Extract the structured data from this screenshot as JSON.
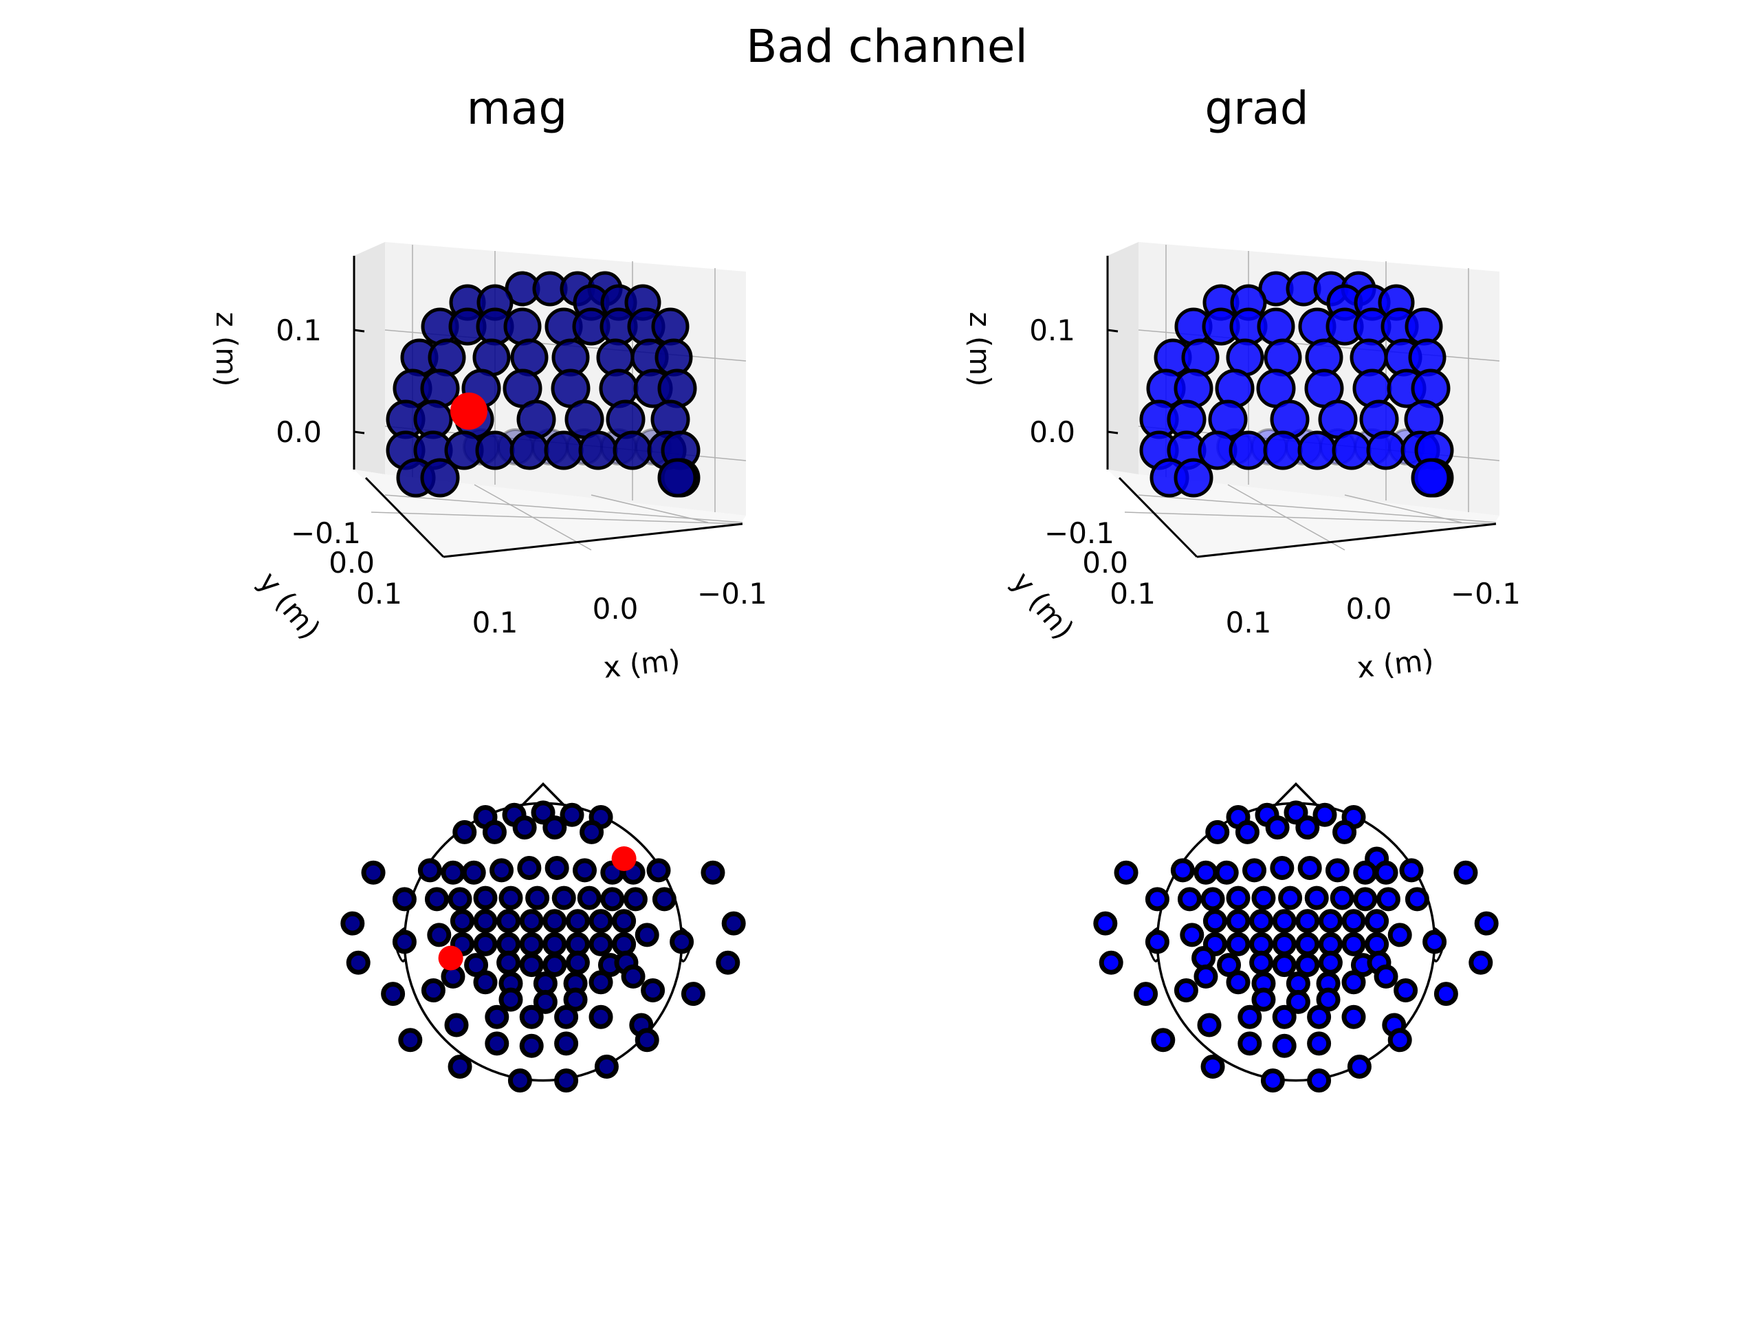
{
  "figure": {
    "suptitle": "Bad channel"
  },
  "chart_data": [
    {
      "type": "scatter",
      "panel": "3d",
      "title": "mag",
      "xlabel": "x (m)",
      "ylabel": "y (m)",
      "zlabel": "z (m)",
      "x_ticks": [
        "0.1",
        "0.0",
        "−0.1"
      ],
      "y_ticks": [
        "−0.1",
        "0.0",
        "0.1"
      ],
      "z_ticks": [
        "0.1",
        "0.0"
      ],
      "grid": true,
      "sensor_color": "#00008b",
      "bad_color": "#ff0000",
      "bad_count_visible": 1
    },
    {
      "type": "scatter",
      "panel": "3d",
      "title": "grad",
      "xlabel": "x (m)",
      "ylabel": "y (m)",
      "zlabel": "z (m)",
      "x_ticks": [
        "0.1",
        "0.0",
        "−0.1"
      ],
      "y_ticks": [
        "−0.1",
        "0.0",
        "0.1"
      ],
      "z_ticks": [
        "0.1",
        "0.0"
      ],
      "grid": true,
      "sensor_color": "#0000ff",
      "bad_color": "#ff0000",
      "bad_count_visible": 0
    },
    {
      "type": "scatter",
      "panel": "topomap",
      "sensor_type": "mag",
      "sensor_color": "#00008b",
      "bad_color": "#ff0000",
      "bad_channels": [
        [
          0.7,
          0.72
        ],
        [
          -0.8,
          -0.14
        ]
      ],
      "points": [
        [
          -0.5,
          1.08
        ],
        [
          -0.25,
          1.1
        ],
        [
          0.0,
          1.12
        ],
        [
          0.25,
          1.1
        ],
        [
          0.5,
          1.08
        ],
        [
          -0.68,
          0.95
        ],
        [
          -0.42,
          0.95
        ],
        [
          -0.16,
          0.99
        ],
        [
          0.1,
          0.99
        ],
        [
          0.42,
          0.95
        ],
        [
          -1.47,
          0.6
        ],
        [
          -0.98,
          0.62
        ],
        [
          -0.78,
          0.6
        ],
        [
          -0.6,
          0.6
        ],
        [
          -0.36,
          0.62
        ],
        [
          -0.12,
          0.64
        ],
        [
          0.12,
          0.64
        ],
        [
          0.36,
          0.62
        ],
        [
          0.6,
          0.6
        ],
        [
          0.78,
          0.6
        ],
        [
          1.0,
          0.62
        ],
        [
          1.47,
          0.6
        ],
        [
          -1.2,
          0.37
        ],
        [
          -0.92,
          0.37
        ],
        [
          -0.72,
          0.37
        ],
        [
          -0.5,
          0.38
        ],
        [
          -0.28,
          0.38
        ],
        [
          -0.05,
          0.38
        ],
        [
          0.18,
          0.38
        ],
        [
          0.4,
          0.38
        ],
        [
          0.6,
          0.37
        ],
        [
          0.8,
          0.37
        ],
        [
          1.05,
          0.37
        ],
        [
          -1.65,
          0.16
        ],
        [
          -1.2,
          0.0
        ],
        [
          -0.9,
          0.06
        ],
        [
          -0.7,
          0.18
        ],
        [
          -0.5,
          0.18
        ],
        [
          -0.3,
          0.18
        ],
        [
          -0.1,
          0.18
        ],
        [
          0.1,
          0.18
        ],
        [
          0.3,
          0.18
        ],
        [
          0.5,
          0.18
        ],
        [
          0.7,
          0.18
        ],
        [
          0.9,
          0.06
        ],
        [
          1.2,
          0.0
        ],
        [
          1.65,
          0.16
        ],
        [
          -0.7,
          -0.02
        ],
        [
          -0.5,
          -0.02
        ],
        [
          -0.3,
          -0.02
        ],
        [
          -0.1,
          -0.02
        ],
        [
          0.1,
          -0.02
        ],
        [
          0.3,
          -0.02
        ],
        [
          0.5,
          -0.02
        ],
        [
          0.7,
          -0.02
        ],
        [
          -1.6,
          -0.18
        ],
        [
          -0.58,
          -0.2
        ],
        [
          -0.3,
          -0.18
        ],
        [
          -0.1,
          -0.2
        ],
        [
          0.1,
          -0.2
        ],
        [
          0.3,
          -0.18
        ],
        [
          0.58,
          -0.2
        ],
        [
          0.72,
          -0.18
        ],
        [
          1.6,
          -0.18
        ],
        [
          -0.78,
          -0.3
        ],
        [
          -0.5,
          -0.35
        ],
        [
          -0.28,
          -0.36
        ],
        [
          0.02,
          -0.36
        ],
        [
          0.28,
          -0.36
        ],
        [
          0.5,
          -0.35
        ],
        [
          0.78,
          -0.3
        ],
        [
          -1.3,
          -0.45
        ],
        [
          -0.95,
          -0.42
        ],
        [
          -0.28,
          -0.5
        ],
        [
          0.02,
          -0.52
        ],
        [
          0.28,
          -0.5
        ],
        [
          0.95,
          -0.42
        ],
        [
          1.3,
          -0.45
        ],
        [
          -0.4,
          -0.65
        ],
        [
          -0.75,
          -0.72
        ],
        [
          -0.1,
          -0.65
        ],
        [
          0.2,
          -0.65
        ],
        [
          0.5,
          -0.65
        ],
        [
          0.85,
          -0.72
        ],
        [
          -1.15,
          -0.85
        ],
        [
          -0.4,
          -0.88
        ],
        [
          -0.1,
          -0.9
        ],
        [
          0.2,
          -0.88
        ],
        [
          0.9,
          -0.85
        ],
        [
          -0.72,
          -1.08
        ],
        [
          -0.2,
          -1.2
        ],
        [
          0.2,
          -1.2
        ],
        [
          0.55,
          -1.08
        ]
      ]
    },
    {
      "type": "scatter",
      "panel": "topomap",
      "sensor_type": "grad",
      "sensor_color": "#0000ff",
      "bad_color": "#ff0000",
      "bad_channels": [],
      "points": [
        [
          -0.5,
          1.08
        ],
        [
          -0.25,
          1.1
        ],
        [
          0.0,
          1.12
        ],
        [
          0.25,
          1.1
        ],
        [
          0.5,
          1.08
        ],
        [
          -0.68,
          0.95
        ],
        [
          -0.42,
          0.95
        ],
        [
          -0.16,
          0.99
        ],
        [
          0.1,
          0.99
        ],
        [
          0.42,
          0.95
        ],
        [
          0.7,
          0.72
        ],
        [
          -1.47,
          0.6
        ],
        [
          -0.98,
          0.62
        ],
        [
          -0.78,
          0.6
        ],
        [
          -0.6,
          0.6
        ],
        [
          -0.36,
          0.62
        ],
        [
          -0.12,
          0.64
        ],
        [
          0.12,
          0.64
        ],
        [
          0.36,
          0.62
        ],
        [
          0.6,
          0.6
        ],
        [
          0.78,
          0.6
        ],
        [
          1.0,
          0.62
        ],
        [
          1.47,
          0.6
        ],
        [
          -1.2,
          0.37
        ],
        [
          -0.92,
          0.37
        ],
        [
          -0.72,
          0.37
        ],
        [
          -0.5,
          0.38
        ],
        [
          -0.28,
          0.38
        ],
        [
          -0.05,
          0.38
        ],
        [
          0.18,
          0.38
        ],
        [
          0.4,
          0.38
        ],
        [
          0.6,
          0.37
        ],
        [
          0.8,
          0.37
        ],
        [
          1.05,
          0.37
        ],
        [
          -1.65,
          0.16
        ],
        [
          -1.2,
          0.0
        ],
        [
          -0.9,
          0.06
        ],
        [
          -0.7,
          0.18
        ],
        [
          -0.5,
          0.18
        ],
        [
          -0.3,
          0.18
        ],
        [
          -0.1,
          0.18
        ],
        [
          0.1,
          0.18
        ],
        [
          0.3,
          0.18
        ],
        [
          0.5,
          0.18
        ],
        [
          0.7,
          0.18
        ],
        [
          0.9,
          0.06
        ],
        [
          1.2,
          0.0
        ],
        [
          1.65,
          0.16
        ],
        [
          -0.7,
          -0.02
        ],
        [
          -0.5,
          -0.02
        ],
        [
          -0.3,
          -0.02
        ],
        [
          -0.1,
          -0.02
        ],
        [
          0.1,
          -0.02
        ],
        [
          0.3,
          -0.02
        ],
        [
          0.5,
          -0.02
        ],
        [
          0.7,
          -0.02
        ],
        [
          -1.6,
          -0.18
        ],
        [
          -0.8,
          -0.14
        ],
        [
          -0.58,
          -0.2
        ],
        [
          -0.3,
          -0.18
        ],
        [
          -0.1,
          -0.2
        ],
        [
          0.1,
          -0.2
        ],
        [
          0.3,
          -0.18
        ],
        [
          0.58,
          -0.2
        ],
        [
          0.72,
          -0.18
        ],
        [
          1.6,
          -0.18
        ],
        [
          -0.78,
          -0.3
        ],
        [
          -0.5,
          -0.35
        ],
        [
          -0.28,
          -0.36
        ],
        [
          0.02,
          -0.36
        ],
        [
          0.28,
          -0.36
        ],
        [
          0.5,
          -0.35
        ],
        [
          0.78,
          -0.3
        ],
        [
          -1.3,
          -0.45
        ],
        [
          -0.95,
          -0.42
        ],
        [
          -0.28,
          -0.5
        ],
        [
          0.02,
          -0.52
        ],
        [
          0.28,
          -0.5
        ],
        [
          0.95,
          -0.42
        ],
        [
          1.3,
          -0.45
        ],
        [
          -0.4,
          -0.65
        ],
        [
          -0.75,
          -0.72
        ],
        [
          -0.1,
          -0.65
        ],
        [
          0.2,
          -0.65
        ],
        [
          0.5,
          -0.65
        ],
        [
          0.85,
          -0.72
        ],
        [
          -1.15,
          -0.85
        ],
        [
          -0.4,
          -0.88
        ],
        [
          -0.1,
          -0.9
        ],
        [
          0.2,
          -0.88
        ],
        [
          0.9,
          -0.85
        ],
        [
          -0.72,
          -1.08
        ],
        [
          -0.2,
          -1.2
        ],
        [
          0.2,
          -1.2
        ],
        [
          0.55,
          -1.08
        ]
      ]
    }
  ]
}
